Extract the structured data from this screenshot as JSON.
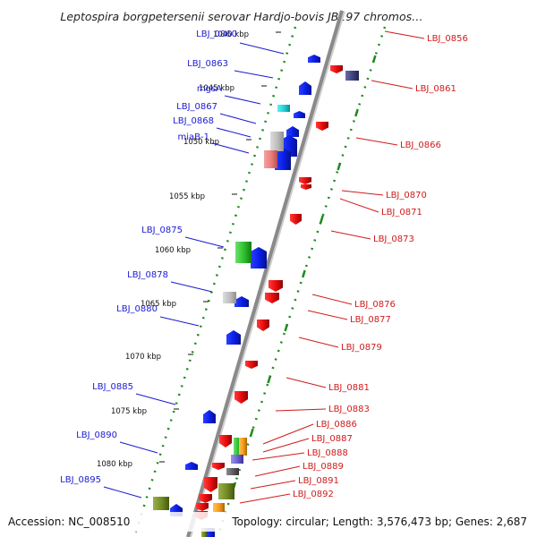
{
  "title": "Leptospira borgpetersenii serovar Hardjo-bovis JB197 chromos…",
  "footer": {
    "accession": "Accession: NC_008510",
    "topology": "Topology: circular; Length: 3,576,473 bp; Genes: 2,687"
  },
  "colors": {
    "backbone": "#8a8a8a",
    "tick_minor": "#1f8a1f",
    "left_label": "#1b1bd0",
    "right_label": "#d01b1b",
    "forward_gene": "#0a1ee6",
    "reverse_gene": "#e60a0a"
  },
  "kbp_ticks": [
    {
      "label": "1040 kbp"
    },
    {
      "label": "1045 kbp"
    },
    {
      "label": "1050 kbp"
    },
    {
      "label": "1055 kbp"
    },
    {
      "label": "1060 kbp"
    },
    {
      "label": "1065 kbp"
    },
    {
      "label": "1070 kbp"
    },
    {
      "label": "1075 kbp"
    },
    {
      "label": "1080 kbp"
    }
  ],
  "left_labels": [
    {
      "text": "LBJ_0860"
    },
    {
      "text": "LBJ_0863"
    },
    {
      "text": "mgsA"
    },
    {
      "text": "LBJ_0867"
    },
    {
      "text": "LBJ_0868"
    },
    {
      "text": "miaB-1"
    },
    {
      "text": "LBJ_0875"
    },
    {
      "text": "LBJ_0878"
    },
    {
      "text": "LBJ_0880"
    },
    {
      "text": "LBJ_0885"
    },
    {
      "text": "LBJ_0890"
    },
    {
      "text": "LBJ_0895"
    }
  ],
  "right_labels": [
    {
      "text": "LBJ_0856"
    },
    {
      "text": "LBJ_0861"
    },
    {
      "text": "LBJ_0866"
    },
    {
      "text": "LBJ_0870"
    },
    {
      "text": "LBJ_0871"
    },
    {
      "text": "LBJ_0873"
    },
    {
      "text": "LBJ_0876"
    },
    {
      "text": "LBJ_0877"
    },
    {
      "text": "LBJ_0879"
    },
    {
      "text": "LBJ_0881"
    },
    {
      "text": "LBJ_0883"
    },
    {
      "text": "LBJ_0886"
    },
    {
      "text": "LBJ_0887"
    },
    {
      "text": "LBJ_0888"
    },
    {
      "text": "LBJ_0889"
    },
    {
      "text": "LBJ_0891"
    },
    {
      "text": "LBJ_0892"
    }
  ]
}
